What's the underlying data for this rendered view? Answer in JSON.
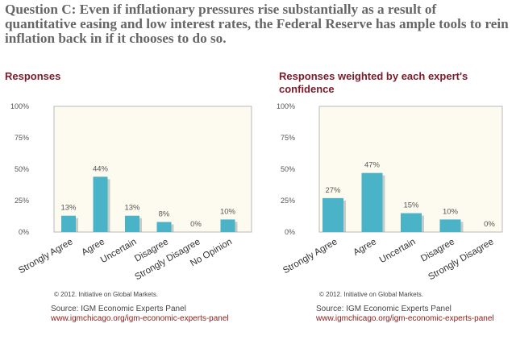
{
  "question": "Question C: Even if inflationary pressures rise substantially as a result of quantitative easing and low interest rates, the Federal Reserve has ample tools to rein inflation back in if it chooses to do so.",
  "colors": {
    "bar": "#4ab3c8",
    "bar_shadow": "#9aa6a8",
    "plot_bg": "#fdfbf0",
    "title": "#7a1a2a",
    "link": "#8b1a1a"
  },
  "chart_data": [
    {
      "type": "bar",
      "title": "Responses",
      "categories": [
        "Strongly Agree",
        "Agree",
        "Uncertain",
        "Disagree",
        "Strongly Disagree",
        "No Opinion"
      ],
      "values": [
        13,
        44,
        13,
        8,
        0,
        10
      ],
      "value_labels": [
        "13%",
        "44%",
        "13%",
        "8%",
        "0%",
        "10%"
      ],
      "yticks": [
        "0%",
        "25%",
        "50%",
        "75%",
        "100%"
      ],
      "ylim": [
        0,
        100
      ],
      "grid": false,
      "copyright": "© 2012. Initiative on Global Markets.",
      "source": "Source:  IGM Economic Experts Panel",
      "link": "www.igmchicago.org/igm-economic-experts-panel"
    },
    {
      "type": "bar",
      "title": "Responses weighted by each expert's confidence",
      "categories": [
        "Strongly Agree",
        "Agree",
        "Uncertain",
        "Disagree",
        "Strongly Disagree"
      ],
      "values": [
        27,
        47,
        15,
        10,
        0
      ],
      "value_labels": [
        "27%",
        "47%",
        "15%",
        "10%",
        "0%"
      ],
      "yticks": [
        "0%",
        "25%",
        "50%",
        "75%",
        "100%"
      ],
      "ylim": [
        0,
        100
      ],
      "grid": false,
      "copyright": "© 2012. Initiative on Global Markets.",
      "source": "Source:  IGM Economic Experts Panel",
      "link": "www.igmchicago.org/igm-economic-experts-panel"
    }
  ]
}
